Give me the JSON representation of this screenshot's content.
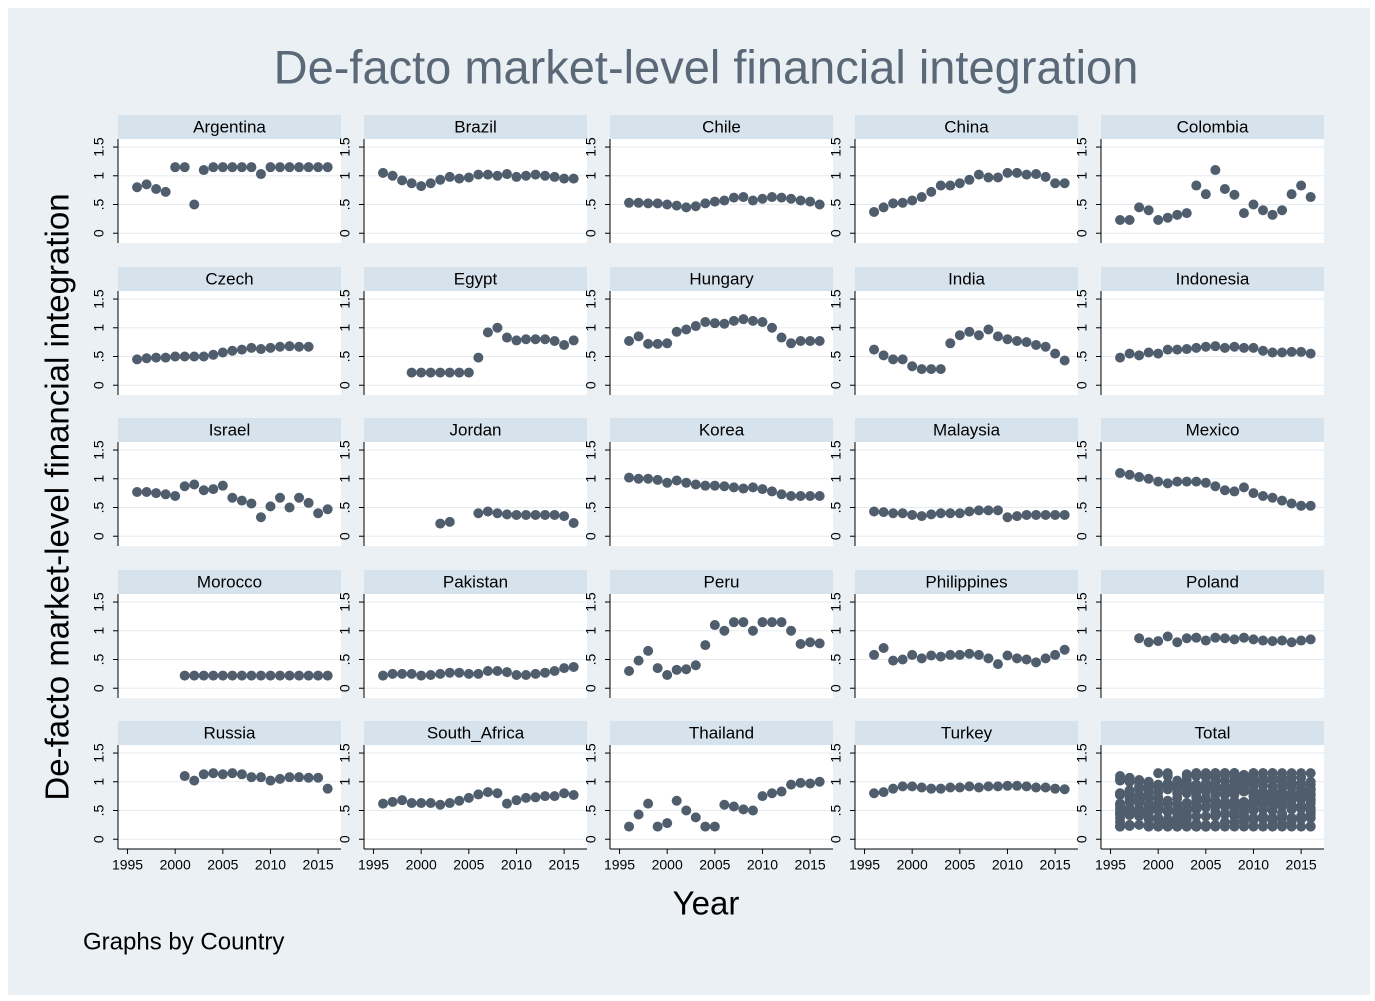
{
  "chart_data": {
    "type": "scatter",
    "title": "De-facto market-level financial integration",
    "xlabel": "Year",
    "ylabel": "De-facto market-level financial integration",
    "note": "Graphs by Country",
    "total_label": "Total",
    "color": "#4f5d6d",
    "grid": true,
    "x": [
      1996,
      1997,
      1998,
      1999,
      2000,
      2001,
      2002,
      2003,
      2004,
      2005,
      2006,
      2007,
      2008,
      2009,
      2010,
      2011,
      2012,
      2013,
      2014,
      2015,
      2016
    ],
    "xlim": [
      1994,
      2017.4
    ],
    "xticks": [
      1995,
      2000,
      2005,
      2010,
      2015
    ],
    "ylim": [
      -0.17,
      1.64
    ],
    "yticks": [
      0,
      {
        "value": 0.5,
        "label": ".5"
      },
      1,
      1.5
    ],
    "series": [
      {
        "name": "Argentina",
        "values": [
          0.8,
          0.85,
          0.77,
          0.72,
          1.15,
          1.15,
          0.5,
          1.1,
          1.15,
          1.15,
          1.15,
          1.15,
          1.15,
          1.03,
          1.15,
          1.15,
          1.15,
          1.15,
          1.15,
          1.15,
          1.15
        ]
      },
      {
        "name": "Brazil",
        "values": [
          1.05,
          1.0,
          0.92,
          0.87,
          0.82,
          0.87,
          0.93,
          0.98,
          0.95,
          0.97,
          1.02,
          1.02,
          1.0,
          1.03,
          0.98,
          1.0,
          1.02,
          1.0,
          0.98,
          0.95,
          0.95
        ]
      },
      {
        "name": "Chile",
        "values": [
          0.53,
          0.53,
          0.52,
          0.52,
          0.5,
          0.48,
          0.45,
          0.47,
          0.52,
          0.55,
          0.57,
          0.62,
          0.63,
          0.57,
          0.6,
          0.63,
          0.62,
          0.6,
          0.57,
          0.55,
          0.5
        ]
      },
      {
        "name": "China",
        "values": [
          0.37,
          0.45,
          0.52,
          0.53,
          0.57,
          0.63,
          0.72,
          0.83,
          0.83,
          0.87,
          0.93,
          1.02,
          0.97,
          0.97,
          1.05,
          1.05,
          1.02,
          1.03,
          0.98,
          0.87,
          0.87
        ]
      },
      {
        "name": "Colombia",
        "values": [
          0.23,
          0.23,
          0.45,
          0.4,
          0.23,
          0.27,
          0.32,
          0.35,
          0.83,
          0.68,
          1.1,
          0.77,
          0.67,
          0.35,
          0.5,
          0.4,
          0.32,
          0.4,
          0.68,
          0.83,
          0.63
        ]
      },
      {
        "name": "Czech",
        "values": [
          0.45,
          0.47,
          0.48,
          0.48,
          0.5,
          0.5,
          0.5,
          0.5,
          0.53,
          0.57,
          0.6,
          0.62,
          0.65,
          0.63,
          0.65,
          0.67,
          0.68,
          0.67,
          0.67,
          null,
          null
        ]
      },
      {
        "name": "Egypt",
        "values": [
          null,
          null,
          null,
          0.22,
          0.22,
          0.22,
          0.22,
          0.22,
          0.22,
          0.22,
          0.48,
          0.92,
          1.0,
          0.83,
          0.78,
          0.8,
          0.8,
          0.8,
          0.77,
          0.7,
          0.78
        ]
      },
      {
        "name": "Hungary",
        "values": [
          0.77,
          0.85,
          0.72,
          0.72,
          0.73,
          0.93,
          0.97,
          1.03,
          1.1,
          1.08,
          1.07,
          1.12,
          1.15,
          1.12,
          1.1,
          1.0,
          0.83,
          0.73,
          0.77,
          0.77,
          0.77
        ]
      },
      {
        "name": "India",
        "values": [
          0.62,
          0.52,
          0.45,
          0.45,
          0.33,
          0.28,
          0.28,
          0.28,
          0.73,
          0.87,
          0.93,
          0.87,
          0.97,
          0.85,
          0.8,
          0.77,
          0.75,
          0.7,
          0.67,
          0.55,
          0.43
        ]
      },
      {
        "name": "Indonesia",
        "values": [
          0.48,
          0.55,
          0.52,
          0.57,
          0.55,
          0.62,
          0.62,
          0.63,
          0.65,
          0.67,
          0.68,
          0.65,
          0.67,
          0.65,
          0.65,
          0.6,
          0.57,
          0.57,
          0.58,
          0.58,
          0.55
        ]
      },
      {
        "name": "Israel",
        "values": [
          0.77,
          0.77,
          0.75,
          0.73,
          0.7,
          0.87,
          0.9,
          0.8,
          0.82,
          0.88,
          0.67,
          0.62,
          0.57,
          0.33,
          0.52,
          0.67,
          0.5,
          0.67,
          0.58,
          0.4,
          0.47
        ]
      },
      {
        "name": "Jordan",
        "values": [
          null,
          null,
          null,
          null,
          null,
          null,
          0.22,
          0.25,
          null,
          null,
          0.4,
          0.43,
          0.4,
          0.38,
          0.37,
          0.37,
          0.37,
          0.37,
          0.37,
          0.35,
          0.23
        ]
      },
      {
        "name": "Korea",
        "values": [
          1.02,
          1.0,
          1.0,
          0.98,
          0.93,
          0.97,
          0.93,
          0.9,
          0.88,
          0.88,
          0.87,
          0.85,
          0.83,
          0.85,
          0.82,
          0.78,
          0.73,
          0.7,
          0.7,
          0.7,
          0.7
        ]
      },
      {
        "name": "Malaysia",
        "values": [
          0.43,
          0.42,
          0.4,
          0.4,
          0.37,
          0.35,
          0.38,
          0.4,
          0.4,
          0.4,
          0.43,
          0.45,
          0.45,
          0.45,
          0.33,
          0.35,
          0.37,
          0.37,
          0.37,
          0.37,
          0.37
        ]
      },
      {
        "name": "Mexico",
        "values": [
          1.1,
          1.07,
          1.03,
          1.0,
          0.95,
          0.92,
          0.95,
          0.95,
          0.95,
          0.93,
          0.87,
          0.8,
          0.78,
          0.85,
          0.75,
          0.7,
          0.67,
          0.62,
          0.57,
          0.53,
          0.53
        ]
      },
      {
        "name": "Morocco",
        "values": [
          null,
          null,
          null,
          null,
          null,
          0.22,
          0.22,
          0.22,
          0.22,
          0.22,
          0.22,
          0.22,
          0.22,
          0.22,
          0.22,
          0.22,
          0.22,
          0.22,
          0.22,
          0.22,
          0.22
        ]
      },
      {
        "name": "Pakistan",
        "values": [
          0.22,
          0.25,
          0.25,
          0.25,
          0.22,
          0.23,
          0.25,
          0.27,
          0.27,
          0.25,
          0.25,
          0.3,
          0.3,
          0.28,
          0.23,
          0.23,
          0.25,
          0.27,
          0.3,
          0.35,
          0.37
        ]
      },
      {
        "name": "Peru",
        "values": [
          0.3,
          0.48,
          0.65,
          0.35,
          0.23,
          0.32,
          0.33,
          0.4,
          0.75,
          1.1,
          1.0,
          1.15,
          1.15,
          1.0,
          1.15,
          1.15,
          1.15,
          1.0,
          0.77,
          0.8,
          0.78
        ]
      },
      {
        "name": "Philippines",
        "values": [
          0.58,
          0.7,
          0.48,
          0.5,
          0.58,
          0.52,
          0.57,
          0.55,
          0.58,
          0.58,
          0.6,
          0.58,
          0.52,
          0.42,
          0.57,
          0.52,
          0.5,
          0.45,
          0.52,
          0.58,
          0.67
        ]
      },
      {
        "name": "Poland",
        "values": [
          null,
          null,
          0.87,
          0.8,
          0.82,
          0.9,
          0.8,
          0.87,
          0.88,
          0.83,
          0.88,
          0.87,
          0.85,
          0.88,
          0.85,
          0.83,
          0.82,
          0.83,
          0.8,
          0.83,
          0.85
        ]
      },
      {
        "name": "Russia",
        "values": [
          null,
          null,
          null,
          null,
          null,
          1.1,
          1.02,
          1.13,
          1.15,
          1.13,
          1.15,
          1.13,
          1.08,
          1.08,
          1.02,
          1.05,
          1.08,
          1.08,
          1.07,
          1.07,
          0.88
        ]
      },
      {
        "name": "South_Africa",
        "values": [
          0.62,
          0.65,
          0.68,
          0.63,
          0.63,
          0.63,
          0.6,
          0.63,
          0.67,
          0.72,
          0.78,
          0.82,
          0.8,
          0.62,
          0.68,
          0.72,
          0.73,
          0.75,
          0.75,
          0.8,
          0.77
        ]
      },
      {
        "name": "Thailand",
        "values": [
          0.22,
          0.43,
          0.62,
          0.22,
          0.28,
          0.67,
          0.5,
          0.38,
          0.22,
          0.22,
          0.6,
          0.57,
          0.52,
          0.5,
          0.75,
          0.8,
          0.83,
          0.95,
          0.98,
          0.97,
          1.0
        ]
      },
      {
        "name": "Turkey",
        "values": [
          0.8,
          0.82,
          0.88,
          0.92,
          0.92,
          0.9,
          0.88,
          0.88,
          0.9,
          0.9,
          0.92,
          0.9,
          0.92,
          0.92,
          0.93,
          0.93,
          0.92,
          0.9,
          0.9,
          0.88,
          0.87
        ]
      }
    ]
  }
}
